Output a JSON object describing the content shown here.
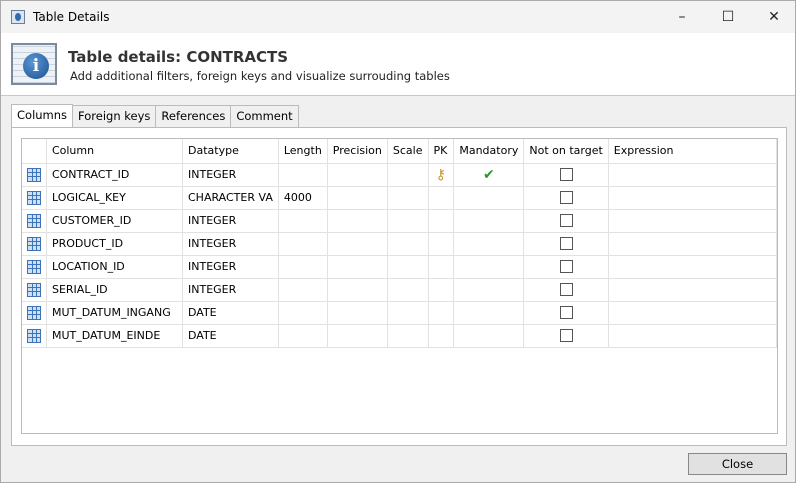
{
  "window": {
    "title": "Table Details",
    "controls": {
      "minimize": "–",
      "maximize": "☐",
      "close": "✕"
    }
  },
  "header": {
    "title": "Table details:  CONTRACTS",
    "subtitle": "Add additional filters, foreign keys and visualize surrouding tables",
    "icon": "info-icon"
  },
  "tabs": [
    {
      "label": "Columns",
      "active": true
    },
    {
      "label": "Foreign keys"
    },
    {
      "label": "References"
    },
    {
      "label": "Comment"
    }
  ],
  "grid": {
    "headers": [
      "Column",
      "Datatype",
      "Length",
      "Precision",
      "Scale",
      "PK",
      "Mandatory",
      "Not on target",
      "Expression"
    ],
    "rows": [
      {
        "column": "CONTRACT_ID",
        "datatype": "INTEGER",
        "length": "",
        "precision": "",
        "scale": "",
        "pk": true,
        "mandatory": true,
        "not_on_target": false,
        "expression": ""
      },
      {
        "column": "LOGICAL_KEY",
        "datatype": "CHARACTER VA",
        "length": "4000",
        "precision": "",
        "scale": "",
        "pk": false,
        "mandatory": false,
        "not_on_target": false,
        "expression": ""
      },
      {
        "column": "CUSTOMER_ID",
        "datatype": "INTEGER",
        "length": "",
        "precision": "",
        "scale": "",
        "pk": false,
        "mandatory": false,
        "not_on_target": false,
        "expression": ""
      },
      {
        "column": "PRODUCT_ID",
        "datatype": "INTEGER",
        "length": "",
        "precision": "",
        "scale": "",
        "pk": false,
        "mandatory": false,
        "not_on_target": false,
        "expression": ""
      },
      {
        "column": "LOCATION_ID",
        "datatype": "INTEGER",
        "length": "",
        "precision": "",
        "scale": "",
        "pk": false,
        "mandatory": false,
        "not_on_target": false,
        "expression": ""
      },
      {
        "column": "SERIAL_ID",
        "datatype": "INTEGER",
        "length": "",
        "precision": "",
        "scale": "",
        "pk": false,
        "mandatory": false,
        "not_on_target": false,
        "expression": ""
      },
      {
        "column": "MUT_DATUM_INGANG",
        "datatype": "DATE",
        "length": "",
        "precision": "",
        "scale": "",
        "pk": false,
        "mandatory": false,
        "not_on_target": false,
        "expression": ""
      },
      {
        "column": "MUT_DATUM_EINDE",
        "datatype": "DATE",
        "length": "",
        "precision": "",
        "scale": "",
        "pk": false,
        "mandatory": false,
        "not_on_target": false,
        "expression": ""
      }
    ]
  },
  "footer": {
    "close_label": "Close"
  }
}
